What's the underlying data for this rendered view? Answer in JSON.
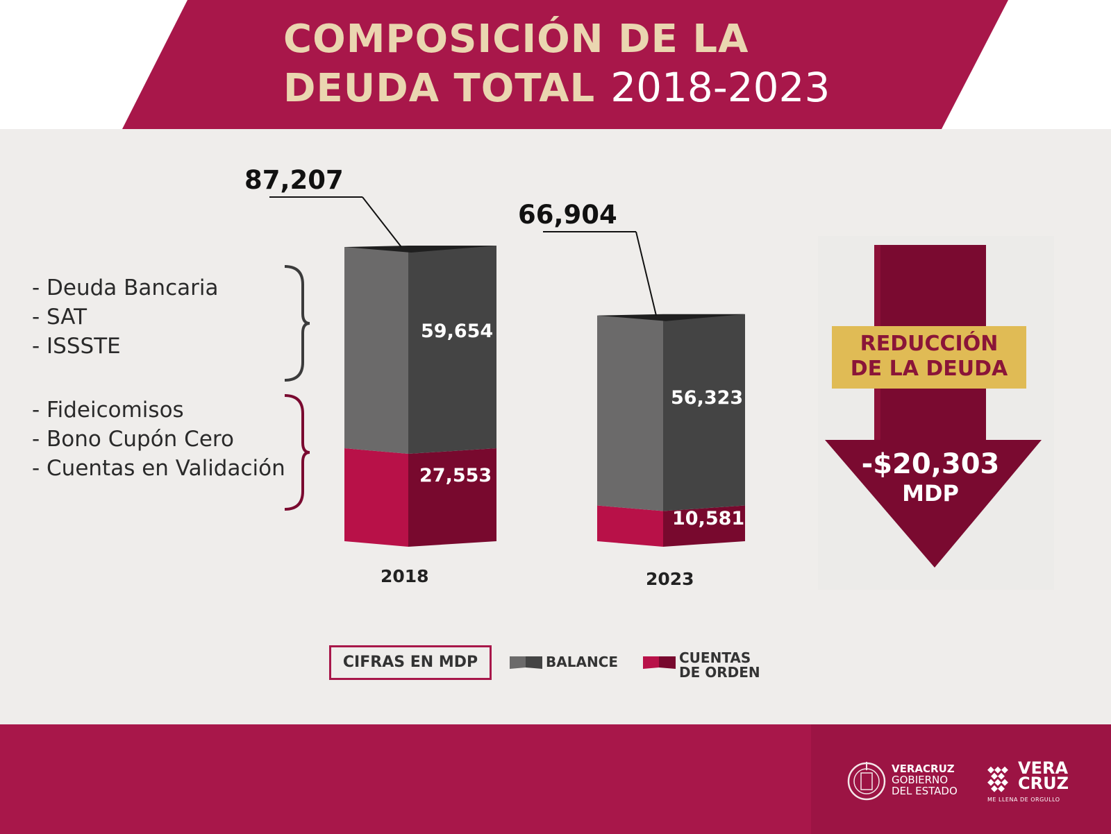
{
  "title": {
    "line1": "COMPOSICIÓN DE LA",
    "line2": "DEUDA TOTAL",
    "years": "2018-2023"
  },
  "colors": {
    "balance": "#4a4a4a",
    "cuentas_de_orden": "#a8174a",
    "accent": "#a8174a",
    "gold": "#e0bb55",
    "title_text": "#ead6b0"
  },
  "left_list": {
    "balance_items": [
      "- Deuda Bancaria",
      "- SAT",
      "- ISSSTE"
    ],
    "cuentas_items": [
      "- Fideicomisos",
      "- Bono Cupón Cero",
      "- Cuentas en Validación"
    ]
  },
  "chart_data": {
    "type": "bar",
    "stacked": true,
    "categories": [
      "2018",
      "2023"
    ],
    "series": [
      {
        "name": "BALANCE",
        "values": [
          59654,
          56323
        ]
      },
      {
        "name": "CUENTAS DE ORDEN",
        "values": [
          27553,
          10581
        ]
      }
    ],
    "totals": [
      87207,
      66904
    ],
    "display": {
      "totals": [
        "87,207",
        "66,904"
      ],
      "balance": [
        "59,654",
        "56,323"
      ],
      "cuentas": [
        "27,553",
        "10,581"
      ]
    },
    "units_label": "CIFRAS EN MDP",
    "legend": [
      "BALANCE",
      "CUENTAS DE ORDEN"
    ]
  },
  "reduction": {
    "label_line1": "REDUCCIÓN",
    "label_line2": "DE LA DEUDA",
    "amount": "-$20,303",
    "unit": "MDP",
    "value": -20303
  },
  "legend": {
    "cifras": "CIFRAS EN MDP",
    "balance": "BALANCE",
    "cuentas_line1": "CUENTAS",
    "cuentas_line2": "DE ORDEN"
  },
  "footer": {
    "org_line1": "VERACRUZ",
    "org_line2": "GOBIERNO",
    "org_line3": "DEL ESTADO",
    "brand_line1": "VERA",
    "brand_line2": "CRUZ",
    "slogan": "ME LLENA DE ORGULLO"
  }
}
